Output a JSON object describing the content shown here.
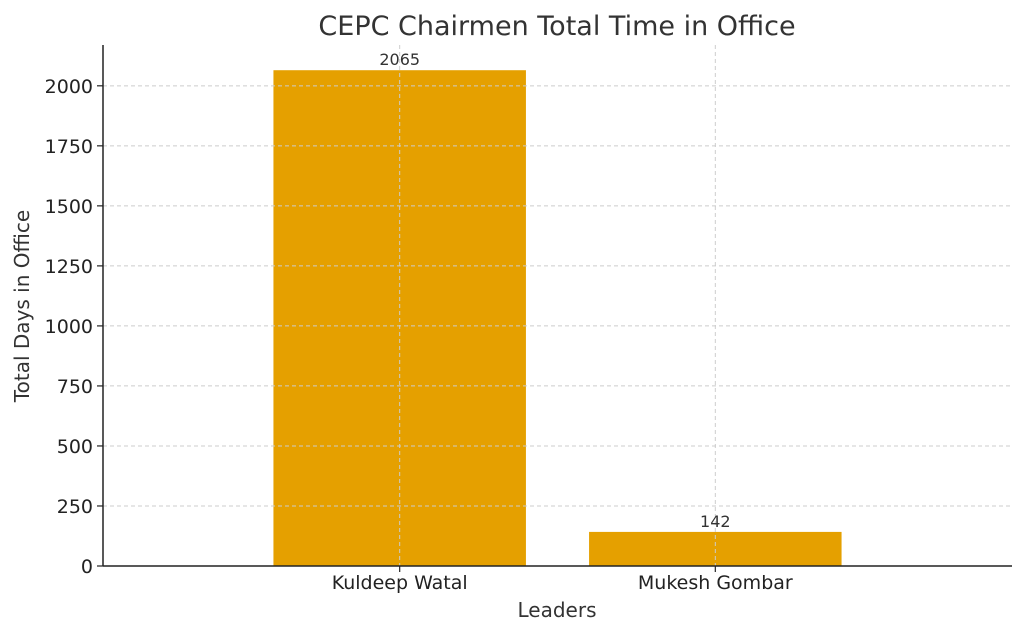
{
  "chart_data": {
    "type": "bar",
    "title": "CEPC Chairmen Total Time in Office",
    "xlabel": "Leaders",
    "ylabel": "Total Days in Office",
    "categories": [
      "Kuldeep Watal",
      "Mukesh Gombar"
    ],
    "values": [
      2065,
      142
    ],
    "data_labels": [
      "2065",
      "142"
    ],
    "ylim": [
      0,
      2170
    ],
    "yticks": [
      0,
      250,
      500,
      750,
      1000,
      1250,
      1500,
      1750,
      2000
    ],
    "grid": true,
    "bar_color": "#E5A000"
  }
}
